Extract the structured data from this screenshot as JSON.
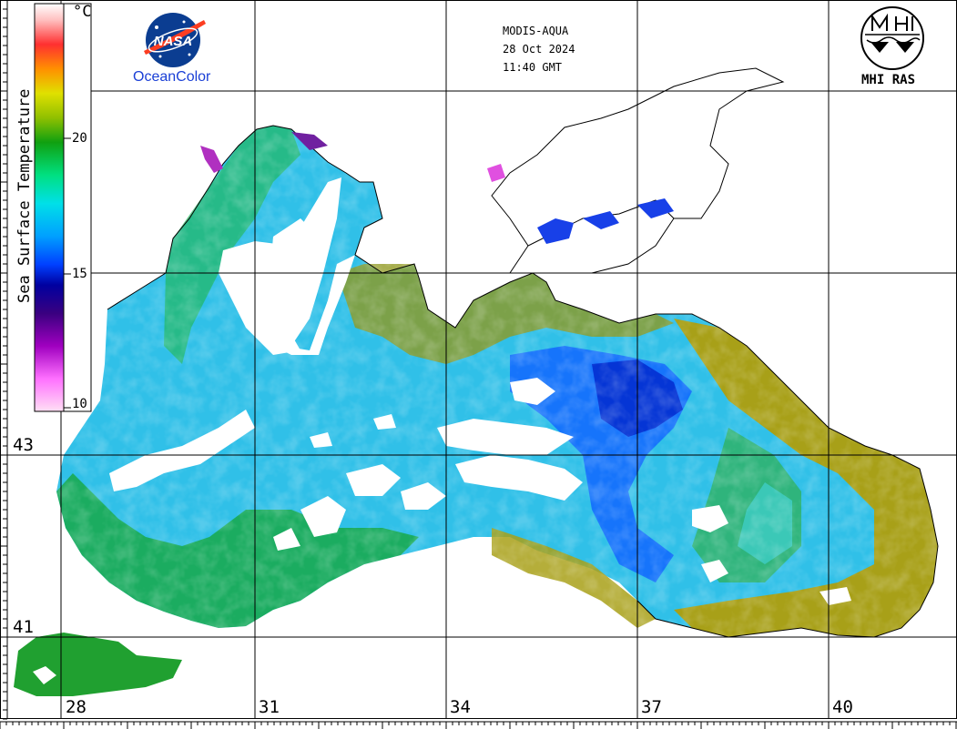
{
  "header": {
    "sensor": "MODIS-AQUA",
    "date": "28 Oct 2024",
    "time": "11:40 GMT"
  },
  "logos": {
    "nasa_caption": "OceanColor",
    "mhi_caption": "MHI RAS"
  },
  "colorbar": {
    "title": "Sea Surface Temperature",
    "unit": "°C",
    "ticks": [
      "20",
      "15",
      "10"
    ],
    "min": 10,
    "max": 25,
    "colors": [
      "#ffd0f0",
      "#ff60ff",
      "#a000c0",
      "#3a0080",
      "#0000a0",
      "#0040ff",
      "#00a0ff",
      "#00e0e8",
      "#00e080",
      "#10a010",
      "#90c000",
      "#e0e000",
      "#ff9000",
      "#ff3030",
      "#ffc0c0",
      "#ffffff"
    ]
  },
  "map": {
    "latitude_labels": [
      "43",
      "41"
    ],
    "longitude_labels": [
      "28",
      "31",
      "34",
      "37",
      "40"
    ],
    "land_color": "#ffffff",
    "cloud_color": "#ffffff",
    "grid_color": "#000000"
  }
}
